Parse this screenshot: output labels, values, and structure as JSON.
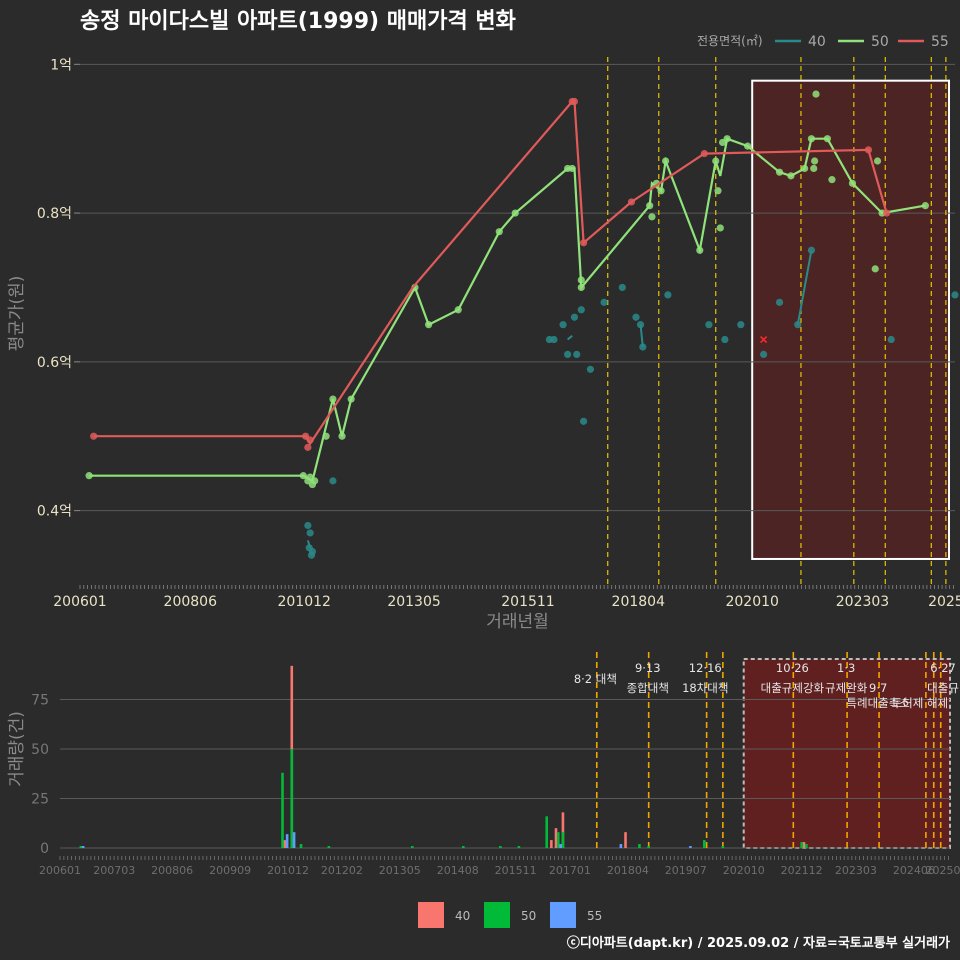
{
  "colors": {
    "background": "#2b2b2b",
    "grid": "#5a5a5a",
    "s40": "#2a8a8a",
    "s50": "#90e27a",
    "s55": "#e05a5a",
    "bar40": "#f8766d",
    "bar50": "#00ba38",
    "bar55": "#619cff",
    "policy_line": "#e8c400",
    "highlight_fill": "#6a1f1f",
    "highlight_border": "#ffffff"
  },
  "chart_data": [
    {
      "type": "line",
      "title": "송정 마이다스빌 아파트(1999) 매매가격 변화",
      "xlabel": "거래년월",
      "ylabel": "평균가(원)",
      "xlim": [
        2006.0,
        2025.2
      ],
      "ylim": [
        0.3,
        1.03
      ],
      "x_ticks": [
        {
          "x": 2006.0,
          "label": "200601"
        },
        {
          "x": 2008.42,
          "label": "200806"
        },
        {
          "x": 2010.92,
          "label": "201012"
        },
        {
          "x": 2013.33,
          "label": "201305"
        },
        {
          "x": 2015.83,
          "label": "201511"
        },
        {
          "x": 2018.25,
          "label": "201804"
        },
        {
          "x": 2020.75,
          "label": "202010"
        },
        {
          "x": 2023.17,
          "label": "202303"
        },
        {
          "x": 2025.0,
          "label": "2025"
        }
      ],
      "y_ticks": [
        {
          "v": 0.4,
          "label": "0.4억"
        },
        {
          "v": 0.6,
          "label": "0.6억"
        },
        {
          "v": 0.8,
          "label": "0.8억"
        },
        {
          "v": 1.0,
          "label": "1억"
        }
      ],
      "legend_title": "전용면적(㎡)",
      "series": [
        {
          "name": "40",
          "points": [
            [
              2011.0,
              0.38
            ],
            [
              2011.05,
              0.37
            ],
            [
              2011.03,
              0.35
            ],
            [
              2011.08,
              0.34
            ],
            [
              2011.1,
              0.345
            ],
            [
              2011.55,
              0.44
            ],
            [
              2016.3,
              0.63
            ],
            [
              2016.4,
              0.63
            ],
            [
              2016.6,
              0.65
            ],
            [
              2016.7,
              0.61
            ],
            [
              2016.85,
              0.66
            ],
            [
              2016.9,
              0.61
            ],
            [
              2017.0,
              0.67
            ],
            [
              2017.05,
              0.52
            ],
            [
              2017.2,
              0.59
            ],
            [
              2017.5,
              0.68
            ],
            [
              2017.9,
              0.7
            ],
            [
              2018.2,
              0.66
            ],
            [
              2018.3,
              0.65
            ],
            [
              2018.35,
              0.62
            ],
            [
              2018.9,
              0.69
            ],
            [
              2019.8,
              0.65
            ],
            [
              2020.15,
              0.63
            ],
            [
              2020.5,
              0.65
            ],
            [
              2021.0,
              0.61
            ],
            [
              2021.35,
              0.68
            ],
            [
              2021.75,
              0.65
            ],
            [
              2022.05,
              0.75
            ],
            [
              2023.8,
              0.63
            ],
            [
              2025.2,
              0.69
            ]
          ],
          "line_segments": [
            [
              [
                2011.0,
                0.36
              ],
              [
                2011.05,
                0.35
              ]
            ],
            [
              [
                2016.7,
                0.63
              ],
              [
                2016.8,
                0.635
              ]
            ],
            [
              [
                2018.3,
                0.65
              ],
              [
                2018.35,
                0.62
              ]
            ],
            [
              [
                2021.75,
                0.65
              ],
              [
                2022.05,
                0.75
              ]
            ]
          ]
        },
        {
          "name": "50",
          "points": [
            [
              2006.2,
              0.447
            ],
            [
              2010.9,
              0.447
            ],
            [
              2011.0,
              0.44
            ],
            [
              2011.05,
              0.445
            ],
            [
              2011.1,
              0.435
            ],
            [
              2011.15,
              0.44
            ],
            [
              2011.4,
              0.5
            ],
            [
              2011.55,
              0.55
            ],
            [
              2011.75,
              0.5
            ],
            [
              2011.95,
              0.55
            ],
            [
              2013.35,
              0.7
            ],
            [
              2013.65,
              0.65
            ],
            [
              2014.3,
              0.67
            ],
            [
              2015.2,
              0.775
            ],
            [
              2015.55,
              0.8
            ],
            [
              2016.7,
              0.86
            ],
            [
              2016.8,
              0.86
            ],
            [
              2017.0,
              0.71
            ],
            [
              2017.0,
              0.7
            ],
            [
              2018.5,
              0.81
            ],
            [
              2018.55,
              0.795
            ],
            [
              2018.65,
              0.84
            ],
            [
              2018.75,
              0.83
            ],
            [
              2018.85,
              0.87
            ],
            [
              2019.6,
              0.75
            ],
            [
              2019.95,
              0.87
            ],
            [
              2020.0,
              0.83
            ],
            [
              2020.05,
              0.78
            ],
            [
              2020.1,
              0.895
            ],
            [
              2020.2,
              0.9
            ],
            [
              2020.65,
              0.89
            ],
            [
              2021.35,
              0.855
            ],
            [
              2021.6,
              0.85
            ],
            [
              2021.9,
              0.86
            ],
            [
              2022.05,
              0.9
            ],
            [
              2022.1,
              0.86
            ],
            [
              2022.12,
              0.87
            ],
            [
              2022.15,
              0.96
            ],
            [
              2022.4,
              0.9
            ],
            [
              2022.5,
              0.845
            ],
            [
              2022.95,
              0.84
            ],
            [
              2023.45,
              0.725
            ],
            [
              2023.5,
              0.87
            ],
            [
              2023.6,
              0.8
            ],
            [
              2024.55,
              0.81
            ]
          ],
          "line_path": [
            [
              2006.2,
              0.447
            ],
            [
              2010.9,
              0.447
            ],
            [
              2011.1,
              0.44
            ],
            [
              2011.55,
              0.55
            ],
            [
              2011.75,
              0.5
            ],
            [
              2011.95,
              0.55
            ],
            [
              2013.35,
              0.7
            ],
            [
              2013.65,
              0.65
            ],
            [
              2014.3,
              0.67
            ],
            [
              2015.2,
              0.775
            ],
            [
              2015.55,
              0.8
            ],
            [
              2016.7,
              0.86
            ],
            [
              2016.85,
              0.86
            ],
            [
              2017.0,
              0.7
            ],
            [
              2018.5,
              0.81
            ],
            [
              2018.55,
              0.84
            ],
            [
              2018.75,
              0.83
            ],
            [
              2018.85,
              0.87
            ],
            [
              2019.6,
              0.75
            ],
            [
              2019.95,
              0.87
            ],
            [
              2020.05,
              0.85
            ],
            [
              2020.2,
              0.9
            ],
            [
              2020.65,
              0.89
            ],
            [
              2021.35,
              0.855
            ],
            [
              2021.6,
              0.85
            ],
            [
              2021.9,
              0.86
            ],
            [
              2022.05,
              0.9
            ],
            [
              2022.4,
              0.9
            ],
            [
              2022.95,
              0.84
            ],
            [
              2023.6,
              0.8
            ],
            [
              2024.55,
              0.81
            ]
          ]
        },
        {
          "name": "55",
          "points": [
            [
              2006.3,
              0.5
            ],
            [
              2010.95,
              0.5
            ],
            [
              2011.0,
              0.485
            ],
            [
              2011.05,
              0.495
            ],
            [
              2016.8,
              0.95
            ],
            [
              2016.85,
              0.95
            ],
            [
              2017.05,
              0.76
            ],
            [
              2018.1,
              0.815
            ],
            [
              2019.7,
              0.88
            ],
            [
              2023.3,
              0.885
            ],
            [
              2023.7,
              0.8
            ]
          ],
          "line_path": [
            [
              2006.3,
              0.5
            ],
            [
              2010.95,
              0.5
            ],
            [
              2011.05,
              0.49
            ],
            [
              2013.3,
              0.7
            ],
            [
              2016.8,
              0.95
            ],
            [
              2016.85,
              0.95
            ],
            [
              2017.05,
              0.76
            ],
            [
              2018.1,
              0.815
            ],
            [
              2019.7,
              0.88
            ],
            [
              2023.3,
              0.885
            ],
            [
              2023.7,
              0.8
            ]
          ]
        }
      ],
      "highlight_x_range": [
        2020.75,
        2025.2
      ],
      "policy_lines_x": [
        2017.58,
        2018.7,
        2019.95,
        2021.82,
        2022.98,
        2023.67,
        2024.68,
        2025.0
      ],
      "marker_x": [
        2021.0,
        0.63
      ]
    },
    {
      "type": "bar",
      "xlabel": "",
      "ylabel": "거래량(건)",
      "xlim": [
        2006.0,
        2025.2
      ],
      "ylim": [
        0,
        100
      ],
      "y_ticks": [
        0,
        25,
        50,
        75
      ],
      "x_ticks": [
        {
          "x": 2006.0,
          "label": "200601"
        },
        {
          "x": 2007.17,
          "label": "200703"
        },
        {
          "x": 2008.42,
          "label": "200806"
        },
        {
          "x": 2009.67,
          "label": "200909"
        },
        {
          "x": 2010.92,
          "label": "201012"
        },
        {
          "x": 2012.08,
          "label": "201202"
        },
        {
          "x": 2013.33,
          "label": "201305"
        },
        {
          "x": 2014.58,
          "label": "201408"
        },
        {
          "x": 2015.83,
          "label": "201511"
        },
        {
          "x": 2017.0,
          "label": "201701"
        },
        {
          "x": 2018.25,
          "label": "201804"
        },
        {
          "x": 2019.5,
          "label": "201907"
        },
        {
          "x": 2020.75,
          "label": "202010"
        },
        {
          "x": 2022.0,
          "label": "202112"
        },
        {
          "x": 2023.17,
          "label": "202303"
        },
        {
          "x": 2024.42,
          "label": "202406"
        },
        {
          "x": 2025.05,
          "label": "20250"
        }
      ],
      "series": [
        {
          "name": "40",
          "bars": [
            [
              2010.85,
              4
            ],
            [
              2011.0,
              92
            ],
            [
              2016.6,
              4
            ],
            [
              2016.7,
              10
            ],
            [
              2016.85,
              18
            ],
            [
              2018.2,
              8
            ],
            [
              2022.05,
              3
            ]
          ]
        },
        {
          "name": "50",
          "bars": [
            [
              2006.45,
              1
            ],
            [
              2010.8,
              38
            ],
            [
              2011.0,
              50
            ],
            [
              2011.2,
              2
            ],
            [
              2011.8,
              1
            ],
            [
              2013.6,
              1
            ],
            [
              2014.7,
              1
            ],
            [
              2015.5,
              1
            ],
            [
              2015.9,
              1
            ],
            [
              2016.5,
              16
            ],
            [
              2016.75,
              8
            ],
            [
              2016.85,
              8
            ],
            [
              2018.5,
              2
            ],
            [
              2018.7,
              1
            ],
            [
              2019.9,
              4
            ],
            [
              2020.3,
              1
            ],
            [
              2022.0,
              3
            ],
            [
              2022.1,
              2
            ]
          ]
        },
        {
          "name": "55",
          "bars": [
            [
              2006.5,
              1
            ],
            [
              2010.9,
              7
            ],
            [
              2011.05,
              8
            ],
            [
              2016.8,
              2
            ],
            [
              2018.1,
              2
            ],
            [
              2019.6,
              1
            ]
          ]
        }
      ],
      "policy_lines_x": [
        2017.58,
        2018.7,
        2019.95,
        2020.3,
        2021.82,
        2022.98,
        2023.67,
        2024.68,
        2024.85,
        2025.0
      ],
      "annotations": [
        {
          "x": 2017.55,
          "row": 0,
          "text": "8·2 대책"
        },
        {
          "x": 2018.68,
          "row": -1,
          "text": "9·13"
        },
        {
          "x": 2018.68,
          "row": 1,
          "text": "종합대책"
        },
        {
          "x": 2019.92,
          "row": -1,
          "text": "12·16"
        },
        {
          "x": 2019.92,
          "row": 1,
          "text": "18차대책"
        },
        {
          "x": 2021.8,
          "row": -1,
          "text": "10·26"
        },
        {
          "x": 2021.8,
          "row": 1,
          "text": "대출규제강화"
        },
        {
          "x": 2022.96,
          "row": -1,
          "text": "1·3"
        },
        {
          "x": 2022.96,
          "row": 1,
          "text": "규제완화"
        },
        {
          "x": 2023.65,
          "row": 1,
          "text": "9·7"
        },
        {
          "x": 2023.65,
          "row": 2,
          "text": "특례대출축소"
        },
        {
          "x": 2024.55,
          "row": 2,
          "text": "토허제 해제"
        },
        {
          "x": 2025.05,
          "row": -1,
          "text": "6·27"
        },
        {
          "x": 2025.05,
          "row": 1,
          "text": "대출규"
        }
      ],
      "highlight_x_range": [
        2020.75,
        2025.2
      ]
    }
  ],
  "bottom_legend": [
    "40",
    "50",
    "55"
  ],
  "footer": "ⓒ디아파트(dapt.kr) / 2025.09.02 / 자료=국토교통부 실거래가"
}
